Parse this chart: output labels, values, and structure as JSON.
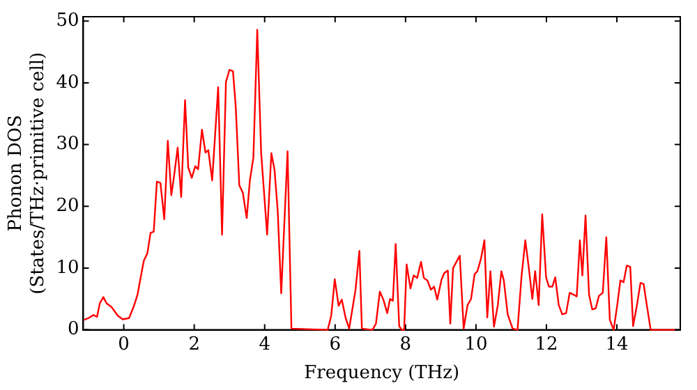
{
  "chart_data": {
    "type": "line",
    "xlabel": "Frequency (THz)",
    "ylabel": "Phonon DOS\n(States/THz·primitive cell)",
    "xlim": [
      -1.15,
      15.8
    ],
    "ylim": [
      0,
      50.7
    ],
    "xticks": [
      0,
      2,
      4,
      6,
      8,
      10,
      12,
      14
    ],
    "yticks": [
      0,
      10,
      20,
      30,
      40,
      50
    ],
    "grid": false,
    "legend": false,
    "marker": "none",
    "line_style": "solid",
    "series": [
      {
        "color": "#ff0000",
        "x": [
          -1.14,
          -1.0,
          -0.86,
          -0.76,
          -0.68,
          -0.58,
          -0.49,
          -0.35,
          -0.17,
          -0.03,
          0.15,
          0.29,
          0.39,
          0.49,
          0.57,
          0.67,
          0.76,
          0.85,
          0.94,
          1.04,
          1.15,
          1.25,
          1.35,
          1.43,
          1.53,
          1.63,
          1.74,
          1.83,
          1.93,
          2.03,
          2.11,
          2.22,
          2.32,
          2.4,
          2.51,
          2.68,
          2.79,
          2.9,
          3.0,
          3.1,
          3.18,
          3.28,
          3.38,
          3.49,
          3.58,
          3.68,
          3.79,
          3.9,
          4.07,
          4.19,
          4.28,
          4.37,
          4.47,
          4.65,
          4.76,
          5.79,
          5.89,
          5.99,
          6.1,
          6.19,
          6.3,
          6.4,
          6.58,
          6.69,
          6.76,
          7.06,
          7.16,
          7.27,
          7.37,
          7.48,
          7.56,
          7.64,
          7.72,
          7.82,
          7.89,
          7.96,
          8.03,
          8.14,
          8.23,
          8.33,
          8.44,
          8.52,
          8.62,
          8.72,
          8.81,
          8.9,
          9.02,
          9.1,
          9.2,
          9.27,
          9.35,
          9.54,
          9.65,
          9.76,
          9.86,
          9.96,
          10.04,
          10.14,
          10.24,
          10.32,
          10.41,
          10.51,
          10.62,
          10.72,
          10.79,
          10.9,
          11.04,
          11.18,
          11.29,
          11.4,
          11.5,
          11.6,
          11.68,
          11.78,
          11.88,
          11.99,
          12.07,
          12.17,
          12.25,
          12.35,
          12.45,
          12.56,
          12.66,
          12.77,
          12.86,
          12.95,
          13.02,
          13.11,
          13.21,
          13.3,
          13.4,
          13.49,
          13.6,
          13.7,
          13.8,
          13.91,
          14.01,
          14.1,
          14.19,
          14.28,
          14.38,
          14.46,
          14.57,
          14.67,
          14.76,
          14.85,
          14.96,
          15.65
        ],
        "values": [
          1.6,
          1.9,
          2.4,
          2.1,
          4.3,
          5.3,
          4.3,
          3.7,
          2.3,
          1.7,
          1.9,
          3.9,
          5.7,
          8.8,
          11.2,
          12.4,
          15.7,
          15.9,
          24,
          23.8,
          17.9,
          30.6,
          21.8,
          25,
          29.5,
          21.5,
          37.2,
          26.3,
          24.6,
          26.5,
          26,
          32.4,
          28.7,
          29.1,
          24.2,
          39.3,
          15.4,
          40.1,
          42.1,
          41.9,
          36,
          23.4,
          22.2,
          18.1,
          24.2,
          27.9,
          48.6,
          28.7,
          15.4,
          28.6,
          25.9,
          19.3,
          5.9,
          28.9,
          0.2,
          0,
          2.3,
          8.2,
          3.9,
          4.9,
          1.9,
          0.2,
          6.5,
          12.8,
          0.2,
          0,
          1,
          6.2,
          4.9,
          2.7,
          5,
          4.7,
          13.9,
          0.6,
          0,
          0,
          10.6,
          6.7,
          8.8,
          8.4,
          11,
          8.4,
          8,
          6.5,
          7,
          4.9,
          8.1,
          9.2,
          9.6,
          1,
          10,
          12,
          0.2,
          4,
          5,
          9,
          9.5,
          11.5,
          14.5,
          2,
          9.5,
          0.5,
          4,
          9.5,
          8,
          2.5,
          0.2,
          0,
          8.5,
          14.5,
          10,
          5,
          9.5,
          4,
          18.7,
          8.5,
          7,
          7,
          8.5,
          4,
          2.5,
          2.7,
          6,
          5.7,
          5.4,
          14.5,
          8.8,
          18.5,
          5.7,
          3.3,
          3.5,
          5.5,
          6,
          15,
          1.6,
          0,
          4,
          8,
          7.7,
          10.4,
          10.2,
          0.6,
          4,
          7.6,
          7.4,
          4,
          0,
          0
        ]
      }
    ]
  }
}
